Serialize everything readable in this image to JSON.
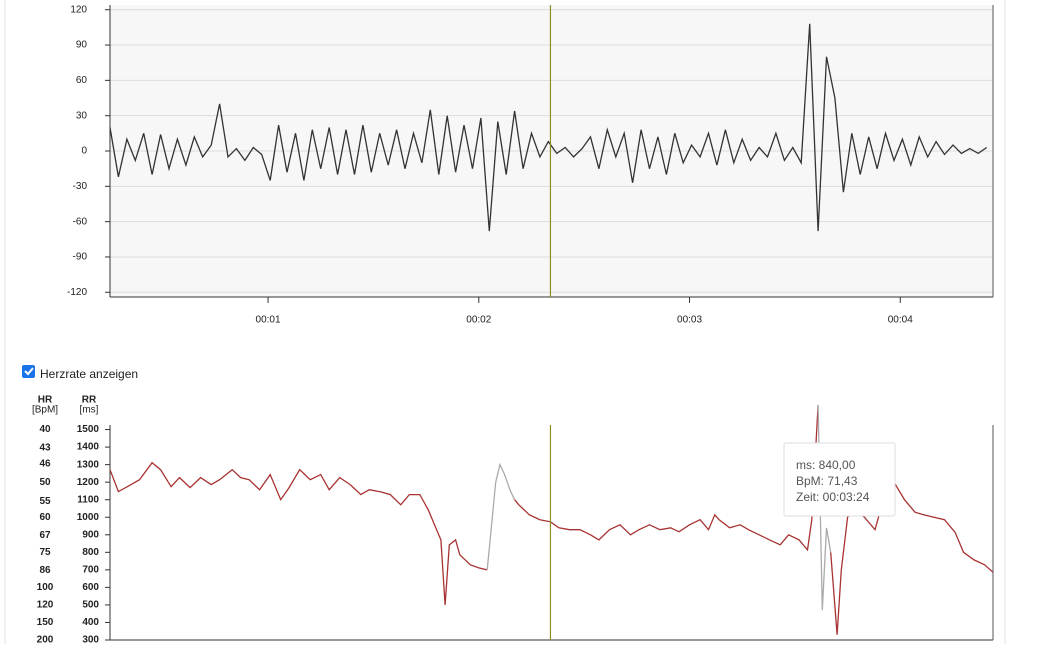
{
  "chart_data": [
    {
      "type": "line",
      "x": [
        0.25,
        0.29,
        0.33,
        0.37,
        0.41,
        0.45,
        0.49,
        0.53,
        0.57,
        0.61,
        0.65,
        0.69,
        0.73,
        0.77,
        0.81,
        0.85,
        0.89,
        0.93,
        0.97,
        1.01,
        1.05,
        1.09,
        1.13,
        1.17,
        1.21,
        1.25,
        1.29,
        1.33,
        1.37,
        1.41,
        1.45,
        1.49,
        1.53,
        1.57,
        1.61,
        1.65,
        1.69,
        1.73,
        1.77,
        1.81,
        1.85,
        1.89,
        1.93,
        1.97,
        2.01,
        2.05,
        2.09,
        2.13,
        2.17,
        2.21,
        2.25,
        2.29,
        2.33,
        2.37,
        2.41,
        2.45,
        2.49,
        2.53,
        2.57,
        2.61,
        2.65,
        2.69,
        2.73,
        2.77,
        2.81,
        2.85,
        2.89,
        2.93,
        2.97,
        3.01,
        3.05,
        3.09,
        3.13,
        3.17,
        3.21,
        3.25,
        3.29,
        3.33,
        3.37,
        3.41,
        3.45,
        3.49,
        3.53,
        3.57,
        3.61,
        3.65,
        3.69,
        3.73,
        3.77,
        3.81,
        3.85,
        3.89,
        3.93,
        3.97,
        4.01,
        4.05,
        4.09,
        4.13,
        4.17,
        4.21,
        4.25,
        4.29,
        4.33,
        4.37,
        4.41
      ],
      "series": [
        {
          "color": "#333333",
          "values": [
            20,
            -22,
            10,
            -8,
            15,
            -20,
            14,
            -15,
            10,
            -12,
            12,
            -5,
            5,
            40,
            -5,
            2,
            -8,
            3,
            -3,
            -25,
            22,
            -18,
            15,
            -25,
            18,
            -15,
            20,
            -20,
            18,
            -20,
            22,
            -18,
            15,
            -12,
            18,
            -15,
            15,
            -10,
            35,
            -20,
            30,
            -18,
            22,
            -15,
            28,
            -68,
            25,
            -20,
            34,
            -15,
            15,
            -5,
            8,
            -2,
            3,
            -5,
            2,
            12,
            -15,
            18,
            -5,
            15,
            -27,
            18,
            -15,
            12,
            -20,
            15,
            -10,
            5,
            -5,
            15,
            -12,
            18,
            -10,
            10,
            -8,
            3,
            -5,
            15,
            -8,
            3,
            -10,
            108,
            -68,
            80,
            45,
            -35,
            15,
            -20,
            12,
            -15,
            15,
            -8,
            10,
            -12,
            12,
            -5,
            8,
            -3,
            5,
            -2,
            2,
            -2,
            3
          ]
        }
      ],
      "xlim": [
        0.25,
        4.44
      ],
      "xticks": [
        {
          "value": 1,
          "label": "00:01"
        },
        {
          "value": 2,
          "label": "00:02"
        },
        {
          "value": 3,
          "label": "00:03"
        },
        {
          "value": 4,
          "label": "00:04"
        }
      ],
      "ylim": [
        -124,
        124
      ],
      "yticks": [
        -120,
        -90,
        -60,
        -30,
        0,
        30,
        60,
        90,
        120
      ],
      "grid": true,
      "cursor_x": 2.34,
      "cursor_color": "#8f8f1f"
    },
    {
      "type": "line",
      "checkbox_label": "Herzrate anzeigen",
      "checked": true,
      "ylabel": [
        "RR",
        "[ms]"
      ],
      "y2label": [
        "HR",
        "[BpM]"
      ],
      "x": [
        0.25,
        0.29,
        0.35,
        0.39,
        0.45,
        0.49,
        0.54,
        0.58,
        0.63,
        0.68,
        0.73,
        0.77,
        0.83,
        0.87,
        0.91,
        0.96,
        1.01,
        1.06,
        1.1,
        1.15,
        1.2,
        1.25,
        1.29,
        1.34,
        1.39,
        1.44,
        1.48,
        1.53,
        1.58,
        1.63,
        1.67,
        1.72,
        1.76,
        1.79,
        1.82,
        1.84,
        1.86,
        1.89,
        1.91,
        1.96,
        2.0,
        2.04,
        2.08,
        2.1,
        2.12,
        2.15,
        2.17,
        2.19,
        2.24,
        2.29,
        2.34,
        2.38,
        2.43,
        2.48,
        2.53,
        2.57,
        2.62,
        2.67,
        2.72,
        2.76,
        2.81,
        2.86,
        2.91,
        2.95,
        3.0,
        3.05,
        3.09,
        3.12,
        3.14,
        3.19,
        3.24,
        3.28,
        3.33,
        3.38,
        3.43,
        3.47,
        3.52,
        3.56,
        3.58,
        3.61,
        3.63,
        3.65,
        3.67,
        3.7,
        3.72,
        3.75,
        3.78,
        3.83,
        3.88,
        3.92,
        3.97,
        4.02,
        4.07,
        4.11,
        4.16,
        4.21,
        4.26,
        4.3,
        4.35,
        4.4,
        4.44
      ],
      "series": [
        {
          "color": "#a83232",
          "values": [
            1271,
            1146,
            1186,
            1214,
            1311,
            1271,
            1174,
            1226,
            1169,
            1226,
            1186,
            1214,
            1271,
            1226,
            1214,
            1157,
            1243,
            1100,
            1169,
            1271,
            1214,
            1243,
            1157,
            1226,
            1186,
            1129,
            1157,
            1146,
            1129,
            1071,
            1129,
            1129,
            1043,
            957,
            871,
            500,
            843,
            871,
            786,
            729,
            711,
            700,
            null,
            null,
            null,
            null,
            1100,
            1071,
            1014,
            986,
            974,
            940,
            929,
            929,
            900,
            871,
            929,
            957,
            900,
            929,
            957,
            929,
            940,
            917,
            957,
            986,
            929,
            1014,
            986,
            940,
            957,
            929,
            900,
            871,
            843,
            900,
            871,
            814,
            986,
            1640,
            null,
            null,
            800,
            330,
            700,
            1000,
            1050,
            1000,
            929,
            1100,
            1200,
            1100,
            1029,
            1014,
            1000,
            986,
            914,
            800,
            757,
            729,
            686
          ]
        },
        {
          "color": "#aaaaaa",
          "values": [
            null,
            null,
            null,
            null,
            null,
            null,
            null,
            null,
            null,
            null,
            null,
            null,
            null,
            null,
            null,
            null,
            null,
            null,
            null,
            null,
            null,
            null,
            null,
            null,
            null,
            null,
            null,
            null,
            null,
            null,
            null,
            null,
            null,
            null,
            null,
            null,
            null,
            null,
            null,
            null,
            null,
            700,
            1200,
            1300,
            1250,
            1150,
            1100,
            null,
            null,
            null,
            null,
            null,
            null,
            null,
            null,
            null,
            null,
            null,
            null,
            null,
            null,
            null,
            null,
            null,
            null,
            null,
            null,
            null,
            null,
            null,
            null,
            null,
            null,
            null,
            null,
            null,
            null,
            null,
            null,
            1640,
            470,
            940,
            800,
            null,
            null,
            null,
            null,
            null,
            null,
            null,
            null,
            null,
            null,
            null,
            null,
            null,
            null,
            null,
            null,
            null,
            null
          ]
        }
      ],
      "xlim": [
        0.25,
        4.44
      ],
      "ylim": [
        300,
        1640
      ],
      "yticks": [
        1500,
        1400,
        1300,
        1200,
        1100,
        1000,
        900,
        800,
        700,
        600,
        500,
        400,
        300
      ],
      "y2ticks": [
        40,
        43,
        46,
        50,
        55,
        60,
        67,
        75,
        86,
        100,
        120,
        150,
        200
      ],
      "y2scale": "reciprocal",
      "cursor_x": 2.34,
      "cursor_color": "#8f8f1f",
      "tooltip": [
        "ms: 840,00",
        "BpM: 71,43",
        "Zeit: 00:03:24"
      ]
    }
  ]
}
